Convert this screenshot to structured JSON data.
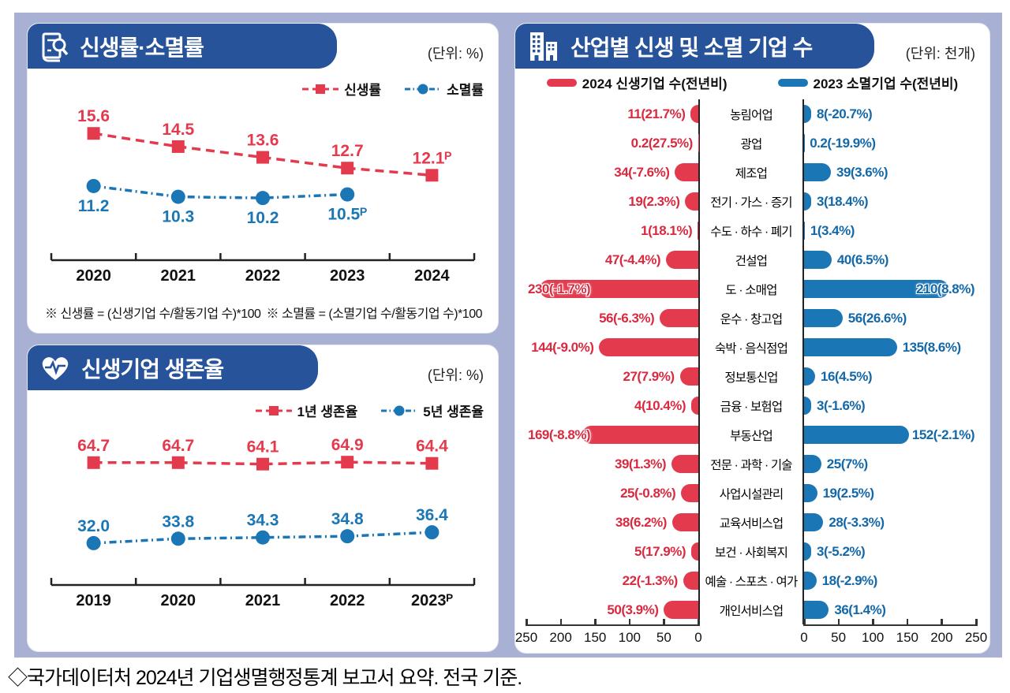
{
  "page": {
    "caption": "◇국가데이터처 2024년 기업생멸행정통계 보고서 요약. 전국 기준.",
    "colors": {
      "background": "#a8b1d3",
      "header": "#27539b",
      "red": "#e43a4d",
      "blue": "#1b76b6"
    }
  },
  "panel_birth_death": {
    "title": "신생률·소멸률",
    "unit": "(단위: %)",
    "icon": "report-magnifier-icon",
    "footnote_left": "※ 신생률 = (신생기업 수/활동기업 수)*100",
    "footnote_right": "※ 소멸률 = (소멸기업 수/활동기업 수)*100"
  },
  "panel_survival": {
    "title": "신생기업 생존율",
    "unit": "(단위: %)",
    "icon": "heart-pulse-icon"
  },
  "panel_industry": {
    "title": "산업별 신생 및 소멸 기업 수",
    "unit": "(단위: 천개)",
    "icon": "buildings-icon"
  },
  "chart_data": [
    {
      "type": "line",
      "title": "신생률·소멸률",
      "unit": "%",
      "categories": [
        "2020",
        "2021",
        "2022",
        "2023",
        "2024"
      ],
      "ylim": [
        5,
        17
      ],
      "series": [
        {
          "name": "신생률",
          "color": "#e43a4d",
          "marker": "square",
          "label_position": "above",
          "values": [
            15.6,
            14.5,
            13.6,
            12.7,
            12.1
          ],
          "labels": [
            "15.6",
            "14.5",
            "13.6",
            "12.7",
            "12.1ᴾ"
          ]
        },
        {
          "name": "소멸률",
          "color": "#1b76b6",
          "marker": "circle",
          "label_position": "below",
          "values": [
            11.2,
            10.3,
            10.2,
            10.5,
            null
          ],
          "labels": [
            "11.2",
            "10.3",
            "10.2",
            "10.5ᴾ",
            ""
          ]
        }
      ]
    },
    {
      "type": "line",
      "title": "신생기업 생존율",
      "unit": "%",
      "categories": [
        "2019",
        "2020",
        "2021",
        "2022",
        "2023ᴾ"
      ],
      "ylim": [
        15,
        72
      ],
      "series": [
        {
          "name": "1년 생존율",
          "color": "#e43a4d",
          "marker": "square",
          "label_position": "above",
          "values": [
            64.7,
            64.7,
            64.1,
            64.9,
            64.4
          ],
          "labels": [
            "64.7",
            "64.7",
            "64.1",
            "64.9",
            "64.4"
          ]
        },
        {
          "name": "5년 생존율",
          "color": "#1b76b6",
          "marker": "circle",
          "label_position": "above",
          "values": [
            32.0,
            33.8,
            34.3,
            34.8,
            36.4
          ],
          "labels": [
            "32.0",
            "33.8",
            "34.3",
            "34.8",
            "36.4"
          ]
        }
      ]
    },
    {
      "type": "bar",
      "orientation": "tornado",
      "title": "산업별 신생 및 소멸 기업 수",
      "unit": "천개",
      "xlim": [
        0,
        250
      ],
      "axis_ticks": [
        0,
        50,
        100,
        150,
        200,
        250
      ],
      "categories": [
        "농림어업",
        "광업",
        "제조업",
        "전기 · 가스 · 증기",
        "수도 · 하수 · 폐기",
        "건설업",
        "도 · 소매업",
        "운수 · 창고업",
        "숙박 · 음식점업",
        "정보통신업",
        "금융 · 보험업",
        "부동산업",
        "전문 · 과학 · 기술",
        "사업시설관리",
        "교육서비스업",
        "보건 · 사회복지",
        "예술 · 스포츠 · 여가",
        "개인서비스업"
      ],
      "series": [
        {
          "name": "2024 신생기업 수(전년비)",
          "side": "left",
          "color": "#e43a4d",
          "values": [
            11,
            0.2,
            34,
            19,
            1,
            47,
            230,
            56,
            144,
            27,
            4,
            169,
            39,
            25,
            38,
            5,
            22,
            50
          ],
          "labels": [
            "11(21.7%)",
            "0.2(27.5%)",
            "34(-7.6%)",
            "19(2.3%)",
            "1(18.1%)",
            "47(-4.4%)",
            "230(-1.7%)",
            "56(-6.3%)",
            "144(-9.0%)",
            "27(7.9%)",
            "4(10.4%)",
            "169(-8.8%)",
            "39(1.3%)",
            "25(-0.8%)",
            "38(6.2%)",
            "5(17.9%)",
            "22(-1.3%)",
            "50(3.9%)"
          ]
        },
        {
          "name": "2023 소멸기업 수(전년비)",
          "side": "right",
          "color": "#1b76b6",
          "values": [
            8,
            0.2,
            39,
            3,
            1,
            40,
            210,
            56,
            135,
            16,
            3,
            152,
            25,
            19,
            28,
            3,
            18,
            36
          ],
          "labels": [
            "8(-20.7%)",
            "0.2(-19.9%)",
            "39(3.6%)",
            "3(18.4%)",
            "1(3.4%)",
            "40(6.5%)",
            "210(8.8%)",
            "56(26.6%)",
            "135(8.6%)",
            "16(4.5%)",
            "3(-1.6%)",
            "152(-2.1%)",
            "25(7%)",
            "19(2.5%)",
            "28(-3.3%)",
            "3(-5.2%)",
            "18(-2.9%)",
            "36(1.4%)"
          ]
        }
      ]
    }
  ]
}
